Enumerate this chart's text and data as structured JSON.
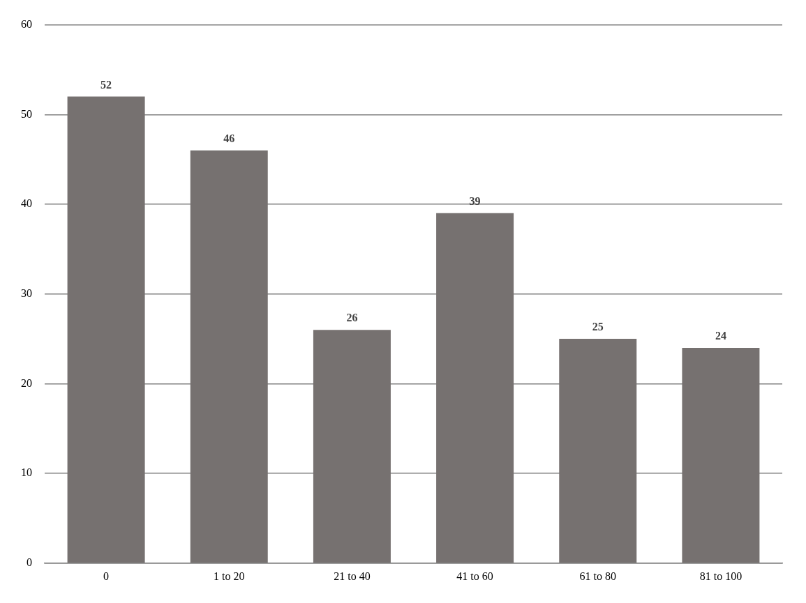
{
  "chart_data": {
    "type": "bar",
    "categories": [
      "0",
      "1 to 20",
      "21 to 40",
      "41 to 60",
      "61 to 80",
      "81 to 100"
    ],
    "values": [
      52,
      46,
      26,
      39,
      25,
      24
    ],
    "color": "#767170",
    "ylim": [
      0,
      60
    ],
    "yticks": [
      0,
      10,
      20,
      30,
      40,
      50,
      60
    ],
    "grid": "y",
    "data_labels": true,
    "legend": false
  }
}
